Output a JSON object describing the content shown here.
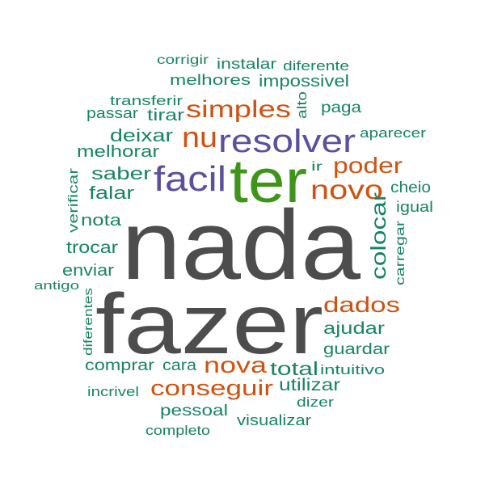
{
  "colors": {
    "dark": "#4d4d4d",
    "green": "#3f9517",
    "purple": "#5b50a0",
    "orange": "#d2510f",
    "teal": "#188466"
  },
  "words": [
    {
      "text": "nada",
      "color": "dark"
    },
    {
      "text": "fazer",
      "color": "dark"
    },
    {
      "text": "ter",
      "color": "green"
    },
    {
      "text": "resolver",
      "color": "purple"
    },
    {
      "text": "facil",
      "color": "purple"
    },
    {
      "text": "nu",
      "color": "orange"
    },
    {
      "text": "simples",
      "color": "orange"
    },
    {
      "text": "poder",
      "color": "orange"
    },
    {
      "text": "novo",
      "color": "orange"
    },
    {
      "text": "colocar",
      "color": "teal"
    },
    {
      "text": "dados",
      "color": "orange"
    },
    {
      "text": "nova",
      "color": "orange"
    },
    {
      "text": "conseguir",
      "color": "orange"
    },
    {
      "text": "corrigir",
      "color": "teal"
    },
    {
      "text": "instalar",
      "color": "teal"
    },
    {
      "text": "diferente",
      "color": "teal"
    },
    {
      "text": "melhores",
      "color": "teal"
    },
    {
      "text": "impossivel",
      "color": "teal"
    },
    {
      "text": "transferir",
      "color": "teal"
    },
    {
      "text": "passar",
      "color": "teal"
    },
    {
      "text": "tirar",
      "color": "teal"
    },
    {
      "text": "alto",
      "color": "teal"
    },
    {
      "text": "paga",
      "color": "teal"
    },
    {
      "text": "deixar",
      "color": "teal"
    },
    {
      "text": "aparecer",
      "color": "teal"
    },
    {
      "text": "melhorar",
      "color": "teal"
    },
    {
      "text": "saber",
      "color": "teal"
    },
    {
      "text": "ir",
      "color": "teal"
    },
    {
      "text": "verificar",
      "color": "teal"
    },
    {
      "text": "falar",
      "color": "teal"
    },
    {
      "text": "cheio",
      "color": "teal"
    },
    {
      "text": "igual",
      "color": "teal"
    },
    {
      "text": "nota",
      "color": "teal"
    },
    {
      "text": "carregar",
      "color": "teal"
    },
    {
      "text": "trocar",
      "color": "teal"
    },
    {
      "text": "enviar",
      "color": "teal"
    },
    {
      "text": "antigo",
      "color": "teal"
    },
    {
      "text": "diferentes",
      "color": "teal"
    },
    {
      "text": "ajudar",
      "color": "teal"
    },
    {
      "text": "guardar",
      "color": "teal"
    },
    {
      "text": "comprar",
      "color": "teal"
    },
    {
      "text": "cara",
      "color": "teal"
    },
    {
      "text": "total",
      "color": "teal"
    },
    {
      "text": "intuitivo",
      "color": "teal"
    },
    {
      "text": "incrivel",
      "color": "teal"
    },
    {
      "text": "utilizar",
      "color": "teal"
    },
    {
      "text": "dizer",
      "color": "teal"
    },
    {
      "text": "pessoal",
      "color": "teal"
    },
    {
      "text": "visualizar",
      "color": "teal"
    },
    {
      "text": "completo",
      "color": "teal"
    }
  ]
}
